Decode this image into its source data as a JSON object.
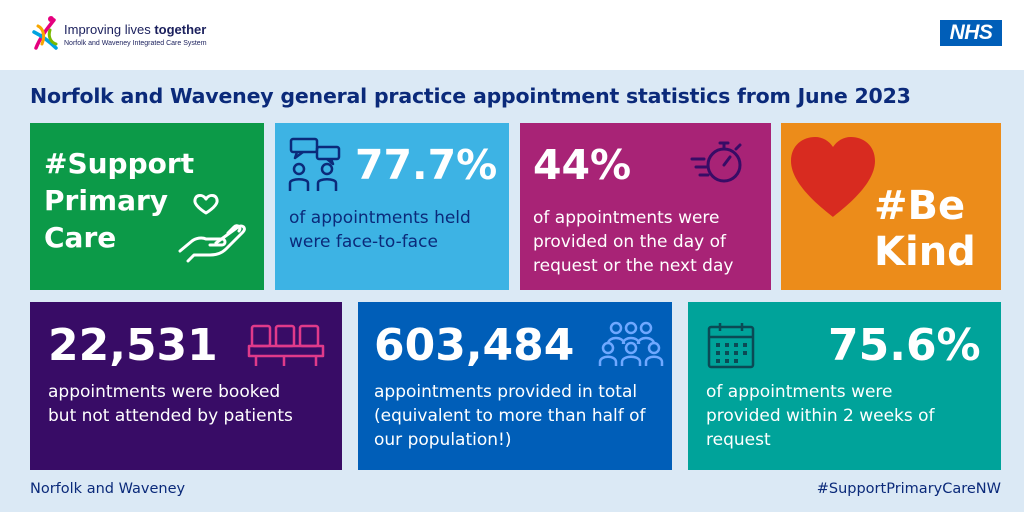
{
  "header": {
    "logo_title_normal": "Improving lives ",
    "logo_title_bold": "together",
    "logo_subtitle": "Norfolk and Waveney Integrated Care System",
    "nhs_logo": "NHS",
    "brand_color": "#005eb8"
  },
  "title": "Norfolk and Waveney general practice appointment statistics from June 2023",
  "tiles": [
    {
      "big": "#Support Primary Care",
      "description": "",
      "icon": "hand-heart-icon",
      "color": "#0c9a48"
    },
    {
      "big": "77.7%",
      "description": "of appointments held were face-to-face",
      "icon": "conversation-people-icon",
      "color": "#3db3e4"
    },
    {
      "big": "44%",
      "description": "of appointments were provided on the day of request or the next day",
      "icon": "stopwatch-icon",
      "color": "#a82376"
    },
    {
      "big": "#Be Kind",
      "description": "",
      "icon": "heart-icon",
      "color": "#ec8c1a"
    },
    {
      "big": "22,531",
      "description": "appointments were booked but not attended by patients",
      "icon": "waiting-chairs-icon",
      "color": "#380c66"
    },
    {
      "big": "603,484",
      "description": "appointments provided in total (equivalent to more than half of our population!)",
      "icon": "people-group-icon",
      "color": "#005eb8"
    },
    {
      "big": "75.6%",
      "description": "of appointments were provided within 2 weeks of request",
      "icon": "calendar-icon",
      "color": "#00a39a"
    }
  ],
  "footer": {
    "left": "Norfolk and Waveney",
    "right": "#SupportPrimaryCareNW"
  }
}
